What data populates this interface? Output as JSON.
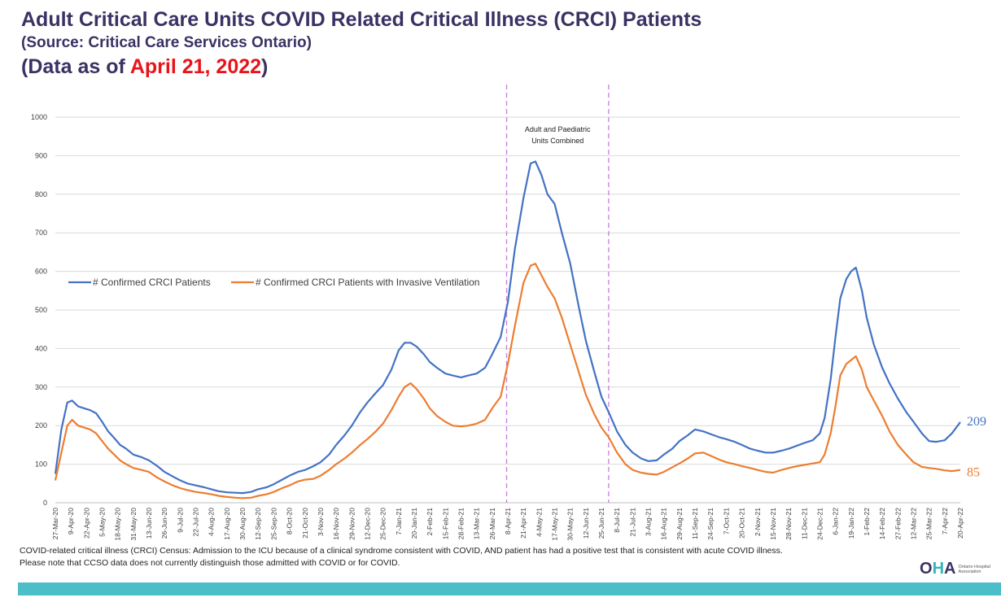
{
  "header": {
    "title": "Adult Critical Care Units COVID Related Critical Illness (CRCI) Patients",
    "source": "(Source: Critical Care Services Ontario)",
    "asof_prefix": "(Data as of ",
    "asof_date": "April 21, 2022",
    "asof_suffix": ")"
  },
  "footnotes": {
    "line1": "COVID-related critical illness (CRCI) Census: Admission to the ICU because of a clinical syndrome consistent with COVID, AND patient has had a positive test that is consistent with acute COVID illness.",
    "line2": "Please note that CCSO data does not currently distinguish those admitted with COVID or for COVID."
  },
  "logo": {
    "mark_o": "O",
    "mark_h": "H",
    "mark_a": "A",
    "text": "Ontario Hospital Association"
  },
  "colors": {
    "confirmed": "#4472c4",
    "ventilated": "#ed7d31",
    "title": "#3b3163",
    "date_highlight": "#e8141b",
    "region_line": "#c77ddb",
    "footer_bar": "#4bbec8"
  },
  "chart_data": {
    "type": "line",
    "title": "",
    "xlabel": "",
    "ylabel": "",
    "ylim": [
      0,
      1000
    ],
    "yticks": [
      0,
      100,
      200,
      300,
      400,
      500,
      600,
      700,
      800,
      900,
      1000
    ],
    "grid": true,
    "legend_position": "left-middle",
    "x_tick_labels": [
      "27-Mar-20",
      "9-Apr-20",
      "22-Apr-20",
      "5-May-20",
      "18-May-20",
      "31-May-20",
      "13-Jun-20",
      "26-Jun-20",
      "9-Jul-20",
      "22-Jul-20",
      "4-Aug-20",
      "17-Aug-20",
      "30-Aug-20",
      "12-Sep-20",
      "25-Sep-20",
      "8-Oct-20",
      "21-Oct-20",
      "3-Nov-20",
      "16-Nov-20",
      "29-Nov-20",
      "12-Dec-20",
      "25-Dec-20",
      "7-Jan-21",
      "20-Jan-21",
      "2-Feb-21",
      "15-Feb-21",
      "28-Feb-21",
      "13-Mar-21",
      "26-Mar-21",
      "8-Apr-21",
      "21-Apr-21",
      "4-May-21",
      "17-May-21",
      "30-May-21",
      "12-Jun-21",
      "25-Jun-21",
      "8-Jul-21",
      "21-Jul-21",
      "3-Aug-21",
      "16-Aug-21",
      "29-Aug-21",
      "11-Sep-21",
      "24-Sep-21",
      "7-Oct-21",
      "20-Oct-21",
      "2-Nov-21",
      "15-Nov-21",
      "28-Nov-21",
      "11-Dec-21",
      "24-Dec-21",
      "6-Jan-22",
      "19-Jan-22",
      "1-Feb-22",
      "14-Feb-22",
      "27-Feb-22",
      "12-Mar-22",
      "25-Mar-22",
      "7-Apr-22",
      "20-Apr-22"
    ],
    "x_start": "2020-03-27",
    "x_end": "2022-04-20",
    "region": {
      "label_line1": "Adult and Paediatric",
      "label_line2": "Units Combined",
      "start": "2021-04-07",
      "end": "2021-07-01"
    },
    "series": [
      {
        "name": "# Confirmed CRCI Patients",
        "last_value_label": "209",
        "points": [
          [
            "2020-03-27",
            75
          ],
          [
            "2020-04-01",
            190
          ],
          [
            "2020-04-06",
            260
          ],
          [
            "2020-04-10",
            265
          ],
          [
            "2020-04-15",
            250
          ],
          [
            "2020-04-20",
            245
          ],
          [
            "2020-04-25",
            240
          ],
          [
            "2020-04-30",
            232
          ],
          [
            "2020-05-05",
            210
          ],
          [
            "2020-05-10",
            185
          ],
          [
            "2020-05-15",
            168
          ],
          [
            "2020-05-20",
            150
          ],
          [
            "2020-05-25",
            140
          ],
          [
            "2020-05-31",
            125
          ],
          [
            "2020-06-07",
            118
          ],
          [
            "2020-06-13",
            110
          ],
          [
            "2020-06-20",
            95
          ],
          [
            "2020-06-26",
            80
          ],
          [
            "2020-07-03",
            68
          ],
          [
            "2020-07-09",
            58
          ],
          [
            "2020-07-15",
            50
          ],
          [
            "2020-07-22",
            45
          ],
          [
            "2020-07-29",
            40
          ],
          [
            "2020-08-04",
            35
          ],
          [
            "2020-08-10",
            30
          ],
          [
            "2020-08-17",
            27
          ],
          [
            "2020-08-24",
            26
          ],
          [
            "2020-08-30",
            25
          ],
          [
            "2020-09-06",
            28
          ],
          [
            "2020-09-12",
            35
          ],
          [
            "2020-09-19",
            40
          ],
          [
            "2020-09-25",
            48
          ],
          [
            "2020-10-02",
            60
          ],
          [
            "2020-10-08",
            70
          ],
          [
            "2020-10-15",
            80
          ],
          [
            "2020-10-21",
            85
          ],
          [
            "2020-10-28",
            95
          ],
          [
            "2020-11-03",
            105
          ],
          [
            "2020-11-10",
            125
          ],
          [
            "2020-11-16",
            150
          ],
          [
            "2020-11-23",
            175
          ],
          [
            "2020-11-29",
            200
          ],
          [
            "2020-12-06",
            235
          ],
          [
            "2020-12-12",
            260
          ],
          [
            "2020-12-19",
            285
          ],
          [
            "2020-12-25",
            305
          ],
          [
            "2021-01-01",
            345
          ],
          [
            "2021-01-07",
            395
          ],
          [
            "2021-01-12",
            415
          ],
          [
            "2021-01-17",
            415
          ],
          [
            "2021-01-22",
            405
          ],
          [
            "2021-01-28",
            385
          ],
          [
            "2021-02-02",
            365
          ],
          [
            "2021-02-08",
            350
          ],
          [
            "2021-02-15",
            335
          ],
          [
            "2021-02-21",
            330
          ],
          [
            "2021-02-28",
            325
          ],
          [
            "2021-03-06",
            330
          ],
          [
            "2021-03-13",
            335
          ],
          [
            "2021-03-20",
            350
          ],
          [
            "2021-03-26",
            385
          ],
          [
            "2021-04-02",
            430
          ],
          [
            "2021-04-08",
            520
          ],
          [
            "2021-04-14",
            660
          ],
          [
            "2021-04-21",
            790
          ],
          [
            "2021-04-27",
            880
          ],
          [
            "2021-05-01",
            885
          ],
          [
            "2021-05-06",
            850
          ],
          [
            "2021-05-11",
            800
          ],
          [
            "2021-05-17",
            775
          ],
          [
            "2021-05-23",
            700
          ],
          [
            "2021-05-30",
            620
          ],
          [
            "2021-06-06",
            510
          ],
          [
            "2021-06-12",
            420
          ],
          [
            "2021-06-19",
            340
          ],
          [
            "2021-06-25",
            275
          ],
          [
            "2021-07-01",
            235
          ],
          [
            "2021-07-08",
            185
          ],
          [
            "2021-07-15",
            150
          ],
          [
            "2021-07-21",
            130
          ],
          [
            "2021-07-28",
            115
          ],
          [
            "2021-08-03",
            108
          ],
          [
            "2021-08-10",
            110
          ],
          [
            "2021-08-16",
            125
          ],
          [
            "2021-08-23",
            140
          ],
          [
            "2021-08-29",
            160
          ],
          [
            "2021-09-05",
            175
          ],
          [
            "2021-09-11",
            190
          ],
          [
            "2021-09-18",
            185
          ],
          [
            "2021-09-24",
            178
          ],
          [
            "2021-10-01",
            170
          ],
          [
            "2021-10-07",
            165
          ],
          [
            "2021-10-14",
            158
          ],
          [
            "2021-10-20",
            150
          ],
          [
            "2021-10-27",
            140
          ],
          [
            "2021-11-02",
            135
          ],
          [
            "2021-11-09",
            130
          ],
          [
            "2021-11-15",
            130
          ],
          [
            "2021-11-22",
            135
          ],
          [
            "2021-11-28",
            140
          ],
          [
            "2021-12-05",
            148
          ],
          [
            "2021-12-11",
            155
          ],
          [
            "2021-12-18",
            162
          ],
          [
            "2021-12-24",
            180
          ],
          [
            "2021-12-28",
            220
          ],
          [
            "2022-01-02",
            320
          ],
          [
            "2022-01-06",
            430
          ],
          [
            "2022-01-10",
            530
          ],
          [
            "2022-01-15",
            580
          ],
          [
            "2022-01-19",
            600
          ],
          [
            "2022-01-23",
            610
          ],
          [
            "2022-01-28",
            550
          ],
          [
            "2022-02-01",
            480
          ],
          [
            "2022-02-07",
            410
          ],
          [
            "2022-02-14",
            350
          ],
          [
            "2022-02-20",
            310
          ],
          [
            "2022-02-27",
            270
          ],
          [
            "2022-03-06",
            235
          ],
          [
            "2022-03-12",
            210
          ],
          [
            "2022-03-19",
            180
          ],
          [
            "2022-03-25",
            160
          ],
          [
            "2022-03-31",
            158
          ],
          [
            "2022-04-07",
            162
          ],
          [
            "2022-04-13",
            180
          ],
          [
            "2022-04-20",
            209
          ]
        ]
      },
      {
        "name": "# Confirmed CRCI Patients with Invasive Ventilation",
        "last_value_label": "85",
        "points": [
          [
            "2020-03-27",
            58
          ],
          [
            "2020-04-01",
            130
          ],
          [
            "2020-04-06",
            200
          ],
          [
            "2020-04-10",
            215
          ],
          [
            "2020-04-15",
            200
          ],
          [
            "2020-04-20",
            195
          ],
          [
            "2020-04-25",
            190
          ],
          [
            "2020-04-30",
            180
          ],
          [
            "2020-05-05",
            160
          ],
          [
            "2020-05-10",
            140
          ],
          [
            "2020-05-15",
            125
          ],
          [
            "2020-05-20",
            110
          ],
          [
            "2020-05-25",
            100
          ],
          [
            "2020-05-31",
            90
          ],
          [
            "2020-06-07",
            85
          ],
          [
            "2020-06-13",
            80
          ],
          [
            "2020-06-20",
            65
          ],
          [
            "2020-06-26",
            55
          ],
          [
            "2020-07-03",
            45
          ],
          [
            "2020-07-09",
            38
          ],
          [
            "2020-07-15",
            33
          ],
          [
            "2020-07-22",
            28
          ],
          [
            "2020-07-29",
            25
          ],
          [
            "2020-08-04",
            22
          ],
          [
            "2020-08-10",
            18
          ],
          [
            "2020-08-17",
            15
          ],
          [
            "2020-08-24",
            13
          ],
          [
            "2020-08-30",
            12
          ],
          [
            "2020-09-06",
            13
          ],
          [
            "2020-09-12",
            18
          ],
          [
            "2020-09-19",
            22
          ],
          [
            "2020-09-25",
            28
          ],
          [
            "2020-10-02",
            38
          ],
          [
            "2020-10-08",
            45
          ],
          [
            "2020-10-15",
            55
          ],
          [
            "2020-10-21",
            60
          ],
          [
            "2020-10-28",
            62
          ],
          [
            "2020-11-03",
            70
          ],
          [
            "2020-11-10",
            85
          ],
          [
            "2020-11-16",
            100
          ],
          [
            "2020-11-23",
            115
          ],
          [
            "2020-11-29",
            130
          ],
          [
            "2020-12-06",
            150
          ],
          [
            "2020-12-12",
            165
          ],
          [
            "2020-12-19",
            185
          ],
          [
            "2020-12-25",
            205
          ],
          [
            "2021-01-01",
            240
          ],
          [
            "2021-01-07",
            275
          ],
          [
            "2021-01-12",
            300
          ],
          [
            "2021-01-17",
            310
          ],
          [
            "2021-01-22",
            295
          ],
          [
            "2021-01-28",
            270
          ],
          [
            "2021-02-02",
            245
          ],
          [
            "2021-02-08",
            225
          ],
          [
            "2021-02-15",
            210
          ],
          [
            "2021-02-21",
            200
          ],
          [
            "2021-02-28",
            198
          ],
          [
            "2021-03-06",
            200
          ],
          [
            "2021-03-13",
            205
          ],
          [
            "2021-03-20",
            215
          ],
          [
            "2021-03-26",
            245
          ],
          [
            "2021-04-02",
            275
          ],
          [
            "2021-04-08",
            360
          ],
          [
            "2021-04-14",
            460
          ],
          [
            "2021-04-21",
            570
          ],
          [
            "2021-04-27",
            615
          ],
          [
            "2021-05-01",
            620
          ],
          [
            "2021-05-06",
            590
          ],
          [
            "2021-05-11",
            560
          ],
          [
            "2021-05-17",
            530
          ],
          [
            "2021-05-23",
            480
          ],
          [
            "2021-05-30",
            410
          ],
          [
            "2021-06-06",
            340
          ],
          [
            "2021-06-12",
            280
          ],
          [
            "2021-06-19",
            230
          ],
          [
            "2021-06-25",
            195
          ],
          [
            "2021-07-01",
            170
          ],
          [
            "2021-07-08",
            130
          ],
          [
            "2021-07-15",
            100
          ],
          [
            "2021-07-21",
            85
          ],
          [
            "2021-07-28",
            78
          ],
          [
            "2021-08-03",
            75
          ],
          [
            "2021-08-10",
            73
          ],
          [
            "2021-08-16",
            80
          ],
          [
            "2021-08-23",
            92
          ],
          [
            "2021-08-29",
            102
          ],
          [
            "2021-09-05",
            115
          ],
          [
            "2021-09-11",
            128
          ],
          [
            "2021-09-18",
            130
          ],
          [
            "2021-09-24",
            122
          ],
          [
            "2021-10-01",
            112
          ],
          [
            "2021-10-07",
            105
          ],
          [
            "2021-10-14",
            100
          ],
          [
            "2021-10-20",
            95
          ],
          [
            "2021-10-27",
            90
          ],
          [
            "2021-11-02",
            85
          ],
          [
            "2021-11-09",
            80
          ],
          [
            "2021-11-15",
            78
          ],
          [
            "2021-11-22",
            85
          ],
          [
            "2021-11-28",
            90
          ],
          [
            "2021-12-05",
            95
          ],
          [
            "2021-12-11",
            98
          ],
          [
            "2021-12-18",
            102
          ],
          [
            "2021-12-24",
            105
          ],
          [
            "2021-12-28",
            125
          ],
          [
            "2022-01-02",
            180
          ],
          [
            "2022-01-06",
            250
          ],
          [
            "2022-01-10",
            330
          ],
          [
            "2022-01-15",
            360
          ],
          [
            "2022-01-19",
            370
          ],
          [
            "2022-01-23",
            380
          ],
          [
            "2022-01-28",
            345
          ],
          [
            "2022-02-01",
            300
          ],
          [
            "2022-02-07",
            265
          ],
          [
            "2022-02-14",
            225
          ],
          [
            "2022-02-20",
            185
          ],
          [
            "2022-02-27",
            150
          ],
          [
            "2022-03-06",
            125
          ],
          [
            "2022-03-12",
            105
          ],
          [
            "2022-03-19",
            93
          ],
          [
            "2022-03-25",
            90
          ],
          [
            "2022-03-31",
            88
          ],
          [
            "2022-04-07",
            84
          ],
          [
            "2022-04-13",
            82
          ],
          [
            "2022-04-20",
            85
          ]
        ]
      }
    ]
  }
}
